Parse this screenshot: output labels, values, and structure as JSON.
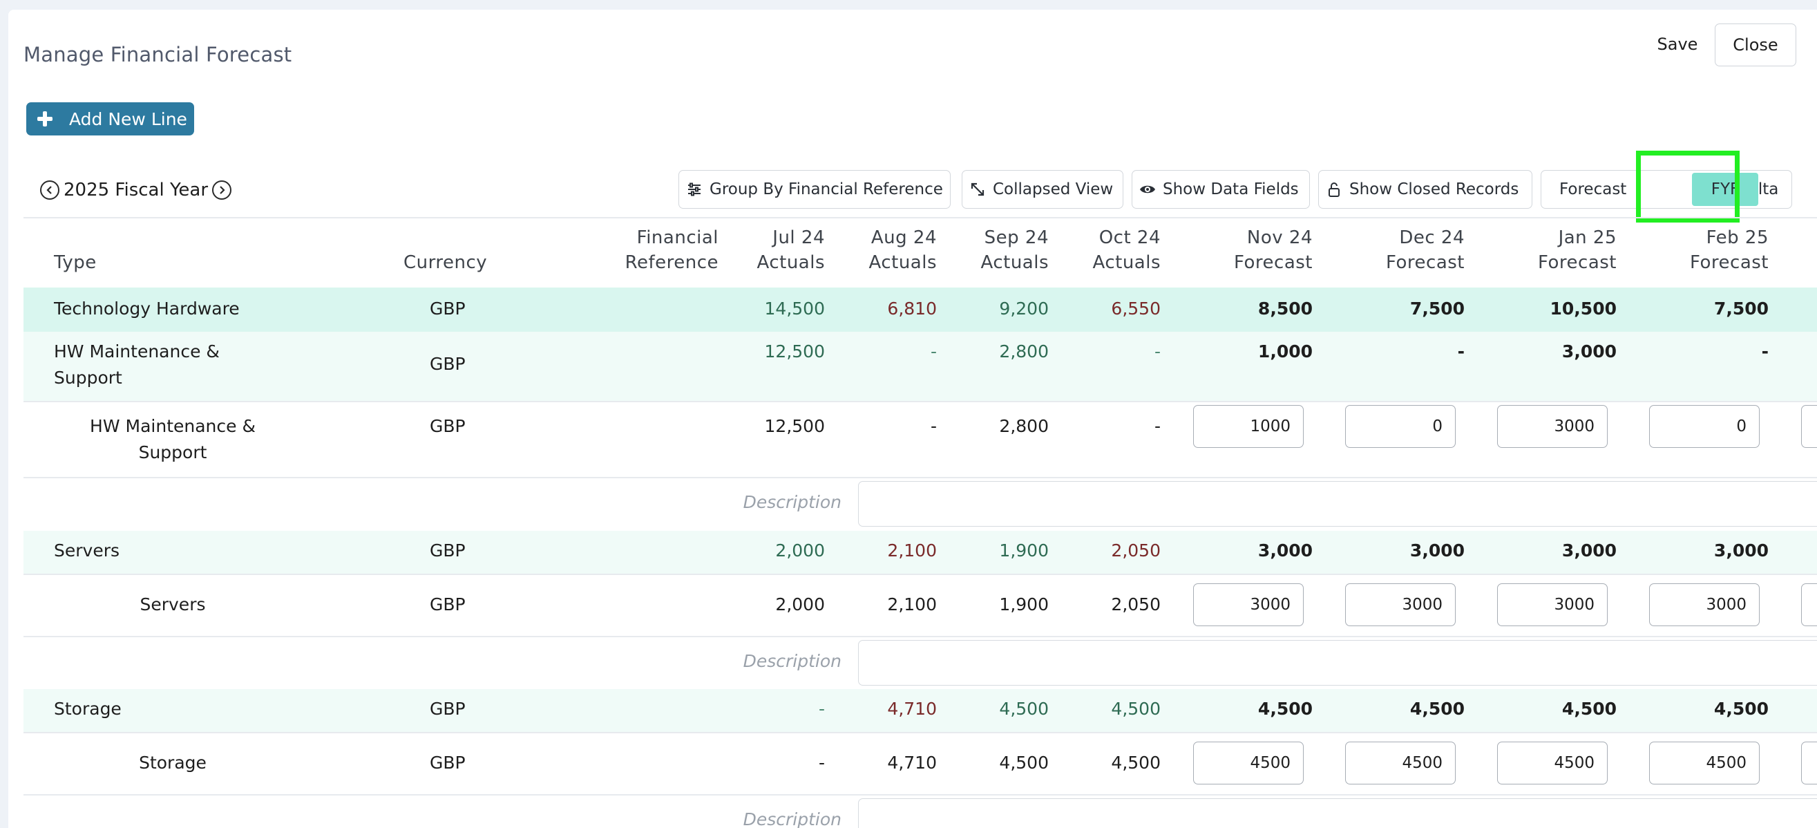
{
  "header": {
    "title": "Manage Financial Forecast",
    "save_label": "Save",
    "close_label": "Close"
  },
  "toolbar": {
    "add_label": "Add New Line",
    "fiscal_year": "2025 Fiscal Year",
    "group_by_label": "Group By Financial Reference",
    "collapsed_label": "Collapsed View",
    "data_fields_label": "Show Data Fields",
    "closed_records_label": "Show Closed Records",
    "view_modes": [
      "Forecast",
      "FYF",
      "Delta"
    ],
    "active_view_mode": "FYF"
  },
  "colors": {
    "accent": "#2d7aa0",
    "active_tab": "#7ee0cf",
    "highlight_outline": "#22ee22",
    "group_row_bg": "#d9f6ef",
    "subgroup_row_bg": "#f0fbf8",
    "actual_under": "#2e6b53",
    "actual_over": "#7a2a2a"
  },
  "table": {
    "columns": {
      "type": "Type",
      "currency": "Currency",
      "finref_1": "Financial",
      "finref_2": "Reference",
      "m1_1": "Jul 24",
      "m1_2": "Actuals",
      "m2_1": "Aug 24",
      "m2_2": "Actuals",
      "m3_1": "Sep 24",
      "m3_2": "Actuals",
      "m4_1": "Oct 24",
      "m4_2": "Actuals",
      "m5_1": "Nov 24",
      "m5_2": "Forecast",
      "m6_1": "Dec 24",
      "m6_2": "Forecast",
      "m7_1": "Jan 25",
      "m7_2": "Forecast",
      "m8_1": "Feb 25",
      "m8_2": "Forecast"
    },
    "description_label": "Description",
    "total": {
      "type": "Technology Hardware",
      "currency": "GBP",
      "actuals": [
        "14,500",
        "6,810",
        "9,200",
        "6,550"
      ],
      "forecast": [
        "8,500",
        "7,500",
        "10,500",
        "7,500"
      ]
    },
    "groups": [
      {
        "type_line1": "HW Maintenance &",
        "type_line2": "Support",
        "currency": "GBP",
        "actuals": [
          "12,500",
          "-",
          "2,800",
          "-"
        ],
        "forecast": [
          "1,000",
          "-",
          "3,000",
          "-"
        ],
        "item": {
          "type_line1": "HW Maintenance &",
          "type_line2": "Support",
          "currency": "GBP",
          "actuals": [
            "12,500",
            "-",
            "2,800",
            "-"
          ],
          "inputs": [
            "1000",
            "0",
            "3000",
            "0"
          ]
        }
      },
      {
        "type_line1": "Servers",
        "currency": "GBP",
        "actuals": [
          "2,000",
          "2,100",
          "1,900",
          "2,050"
        ],
        "forecast": [
          "3,000",
          "3,000",
          "3,000",
          "3,000"
        ],
        "item": {
          "type_line1": "Servers",
          "currency": "GBP",
          "actuals": [
            "2,000",
            "2,100",
            "1,900",
            "2,050"
          ],
          "inputs": [
            "3000",
            "3000",
            "3000",
            "3000"
          ]
        }
      },
      {
        "type_line1": "Storage",
        "currency": "GBP",
        "actuals": [
          "-",
          "4,710",
          "4,500",
          "4,500"
        ],
        "forecast": [
          "4,500",
          "4,500",
          "4,500",
          "4,500"
        ],
        "item": {
          "type_line1": "Storage",
          "currency": "GBP",
          "actuals": [
            "-",
            "4,710",
            "4,500",
            "4,500"
          ],
          "inputs": [
            "4500",
            "4500",
            "4500",
            "4500"
          ]
        }
      }
    ]
  }
}
